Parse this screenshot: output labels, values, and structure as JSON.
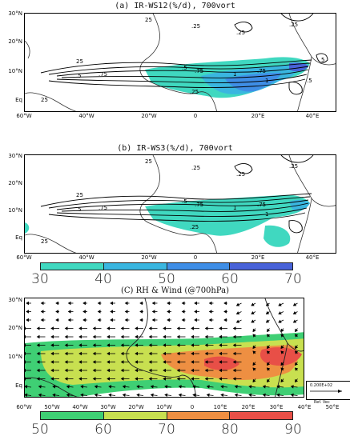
{
  "panels": [
    {
      "title": "(a) IR-WS12(%/d), 700vort",
      "lat_labels": [
        "30°N",
        "20°N",
        "10°N",
        "Eq"
      ],
      "lon_labels": [
        "60°W",
        "40°W",
        "20°W",
        "0",
        "20°E",
        "40°E"
      ],
      "contour_labels": [
        "25",
        ".25",
        ".25",
        "25",
        ".5",
        ".5",
        ".75",
        ".75",
        "1",
        ".75",
        "1",
        "5",
        ".25",
        "25",
        ".25",
        ".5"
      ]
    },
    {
      "title": "(b) IR-WS3(%/d), 700vort",
      "lat_labels": [
        "30°N",
        "20°N",
        "10°N",
        "Eq"
      ],
      "lon_labels": [
        "60°W",
        "40°W",
        "20°W",
        "0",
        "20°E",
        "40°E"
      ],
      "contour_labels": [
        "25",
        ".25",
        ".25",
        "25",
        ".5",
        ".5",
        ".75",
        ".75",
        "1",
        ".75",
        "1",
        ".25",
        "25",
        ".25"
      ]
    },
    {
      "title": "(C) RH & Wind (@700hPa)",
      "lat_labels": [
        "30°N",
        "20°N",
        "10°N",
        "Eq"
      ],
      "lon_labels": [
        "60°W",
        "50°W",
        "40°W",
        "30°W",
        "20°W",
        "10°W",
        "0",
        "10°E",
        "20°E",
        "30°E",
        "40°E",
        "50°E"
      ],
      "ref_vector_value": "0.200E+02",
      "ref_vector_label": "Ref. Vec"
    }
  ],
  "colorbar_ab": {
    "labels": [
      "30",
      "40",
      "50",
      "60",
      "70"
    ],
    "colors": [
      "#40d8c0",
      "#3ab6e0",
      "#3f8ee6",
      "#4862d8"
    ]
  },
  "colorbar_c": {
    "labels": [
      "50",
      "60",
      "70",
      "80",
      "90"
    ],
    "colors": [
      "#3fcf74",
      "#c8e050",
      "#ee8f42",
      "#e84f47"
    ]
  }
}
